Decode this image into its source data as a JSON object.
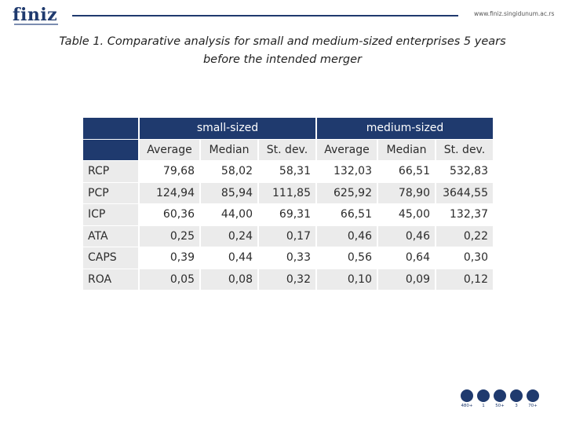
{
  "header": {
    "logo_text": "finiz",
    "site_url": "www.finiz.singidunum.ac.rs"
  },
  "title": {
    "line1": "Table 1. Comparative analysis for small and medium-sized enterprises 5 years",
    "line2": "before the intended merger"
  },
  "table": {
    "groups": [
      "small-sized",
      "medium-sized"
    ],
    "columns": [
      "Average",
      "Median",
      "St. dev.",
      "Average",
      "Median",
      "St. dev."
    ],
    "rows": [
      {
        "label": "RCP",
        "values": [
          "79,68",
          "58,02",
          "58,31",
          "132,03",
          "66,51",
          "532,83"
        ]
      },
      {
        "label": "PCP",
        "values": [
          "124,94",
          "85,94",
          "111,85",
          "625,92",
          "78,90",
          "3644,55"
        ]
      },
      {
        "label": "ICP",
        "values": [
          "60,36",
          "44,00",
          "69,31",
          "66,51",
          "45,00",
          "132,37"
        ]
      },
      {
        "label": "ATA",
        "values": [
          "0,25",
          "0,24",
          "0,17",
          "0,46",
          "0,46",
          "0,22"
        ]
      },
      {
        "label": "CAPS",
        "values": [
          "0,39",
          "0,44",
          "0,33",
          "0,56",
          "0,64",
          "0,30"
        ]
      },
      {
        "label": "ROA",
        "values": [
          "0,05",
          "0,08",
          "0,32",
          "0,10",
          "0,09",
          "0,12"
        ]
      }
    ]
  },
  "footer": {
    "badges": [
      "480+",
      "1",
      "50+",
      "3",
      "70+"
    ]
  }
}
